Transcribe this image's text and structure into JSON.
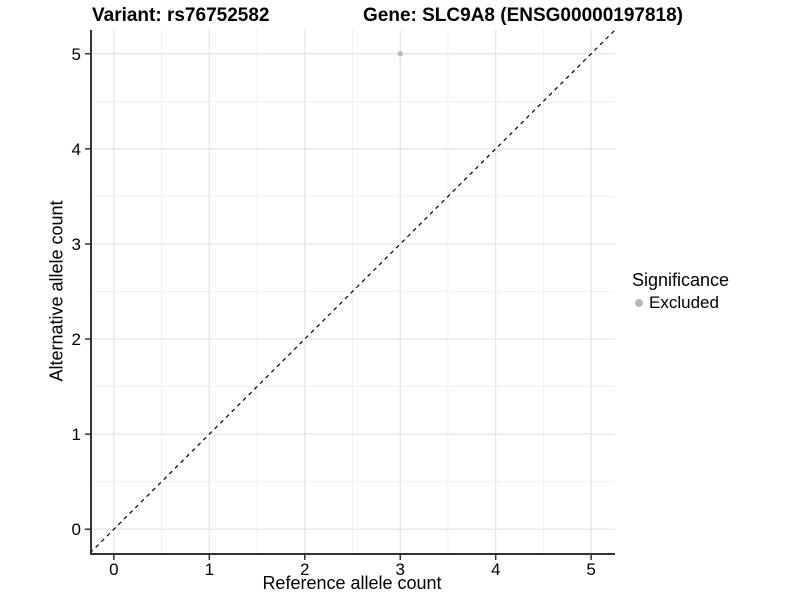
{
  "titles": {
    "variant": "Variant: rs76752582",
    "gene": "Gene: SLC9A8 (ENSG00000197818)"
  },
  "colors": {
    "background": "#ffffff",
    "grid_major": "#e4e4e4",
    "grid_minor": "#f0f0f0",
    "axis_line": "#333333",
    "tick_mark": "#333333",
    "text": "#000000",
    "reference_line": "#000000",
    "excluded_point": "#b9b9b9"
  },
  "chart_data": {
    "type": "scatter",
    "title_left": "Variant: rs76752582",
    "title_right": "Gene: SLC9A8 (ENSG00000197818)",
    "xlabel": "Reference allele count",
    "ylabel": "Alternative allele count",
    "xlim": [
      -0.25,
      5.25
    ],
    "ylim": [
      -0.25,
      5.25
    ],
    "x_ticks": [
      0,
      1,
      2,
      3,
      4,
      5
    ],
    "y_ticks": [
      0,
      1,
      2,
      3,
      4,
      5
    ],
    "grid": "major and minor gridlines on white panel",
    "reference_line": {
      "equation": "y = x",
      "style": "dashed",
      "color": "#000000"
    },
    "series": [
      {
        "name": "Excluded",
        "color": "#b9b9b9",
        "points": [
          {
            "x": 3,
            "y": 5
          }
        ]
      }
    ],
    "legend": {
      "title": "Significance",
      "position": "right",
      "items": [
        {
          "label": "Excluded",
          "color": "#b9b9b9"
        }
      ]
    }
  }
}
